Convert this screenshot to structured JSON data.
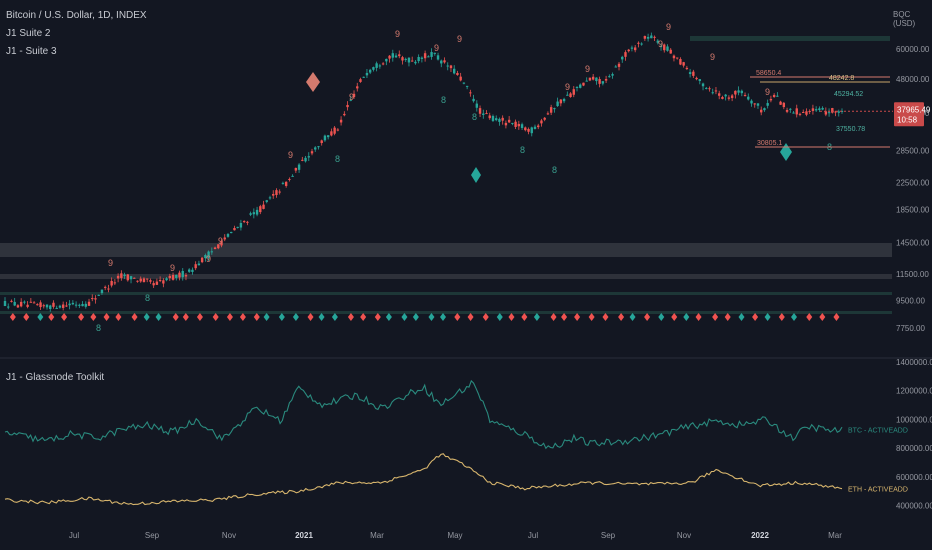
{
  "header": {
    "symbol_title": "Bitcoin / U.S. Dollar, 1D, INDEX",
    "indicator_1": "J1 Suite 2",
    "indicator_2": "J1 - Suite 3",
    "currency_label": "BQC (USD)"
  },
  "lower_pane": {
    "title": "J1 - Glassnode Toolkit"
  },
  "colors": {
    "background": "#131722",
    "candle_up": "#26a69a",
    "candle_down": "#ef5350",
    "btc_line": "#2a8a7e",
    "eth_line": "#d7b56d",
    "price_tag": "#c94a4a",
    "zone": "#3a3d45"
  },
  "chart_data": [
    {
      "type": "line",
      "title": "Bitcoin / U.S. Dollar, 1D, INDEX",
      "y_scale": "log",
      "ylim": [
        7000,
        73000
      ],
      "y_ticks": [
        "60000.00",
        "48000.00",
        "37500.00",
        "28500.00",
        "22500.00",
        "18500.00",
        "14500.00",
        "11500.00",
        "9500.00",
        "7750.00"
      ],
      "x_ticks": [
        "Jul",
        "Sep",
        "Nov",
        "2021",
        "Mar",
        "May",
        "Jul",
        "Sep",
        "Nov",
        "2022",
        "Mar"
      ],
      "series": [
        {
          "name": "",
          "x": [
            0,
            0.05,
            0.1,
            0.14,
            0.18,
            0.22,
            0.245,
            0.27,
            0.31,
            0.34,
            0.37,
            0.4,
            0.43,
            0.46,
            0.49,
            0.51,
            0.54,
            0.57,
            0.6,
            0.63,
            0.66,
            0.69,
            0.7,
            0.72,
            0.74,
            0.77,
            0.8,
            0.83,
            0.86,
            0.88,
            0.905,
            0.92,
            0.935
          ],
          "values": [
            9300,
            9100,
            9300,
            11400,
            10700,
            11700,
            13400,
            15500,
            19000,
            23000,
            29000,
            34000,
            50000,
            57000,
            55000,
            58000,
            50000,
            37000,
            35000,
            33000,
            40000,
            46000,
            48000,
            47000,
            57000,
            66000,
            57000,
            47000,
            42000,
            44000,
            38000,
            43000,
            37950
          ]
        }
      ],
      "price_labels": [
        "37965.49",
        "10:58",
        "58650.4",
        "48242.8",
        "45294.52",
        "30805.1",
        "37550.78"
      ]
    },
    {
      "type": "line",
      "title": "J1 - Glassnode Toolkit",
      "ylim": [
        300000,
        1400000
      ],
      "y_ticks": [
        "1400000.00",
        "1200000.00",
        "1000000.00",
        "800000.00",
        "600000.00",
        "400000.00"
      ],
      "series": [
        {
          "name": "BTC - ACTIVEADD",
          "x": [
            0,
            0.05,
            0.08,
            0.11,
            0.14,
            0.17,
            0.2,
            0.23,
            0.26,
            0.3,
            0.33,
            0.35,
            0.38,
            0.42,
            0.45,
            0.5,
            0.52,
            0.54,
            0.56,
            0.58,
            0.6,
            0.62,
            0.65,
            0.68,
            0.7,
            0.74,
            0.78,
            0.81,
            0.85,
            0.88,
            0.91,
            0.94,
            0.96,
            0.99,
            1.0
          ],
          "values": [
            910000,
            850000,
            900000,
            870000,
            930000,
            960000,
            910000,
            1000000,
            860000,
            1080000,
            990000,
            1220000,
            1100000,
            1170000,
            1080000,
            1230000,
            1100000,
            1180000,
            1260000,
            990000,
            940000,
            900000,
            800000,
            870000,
            830000,
            850000,
            890000,
            940000,
            990000,
            960000,
            1000000,
            870000,
            950000,
            920000,
            930000
          ]
        },
        {
          "name": "ETH - ACTIVEADD",
          "x": [
            0,
            0.05,
            0.1,
            0.15,
            0.2,
            0.25,
            0.3,
            0.35,
            0.4,
            0.45,
            0.5,
            0.52,
            0.55,
            0.58,
            0.62,
            0.66,
            0.7,
            0.74,
            0.78,
            0.82,
            0.85,
            0.9,
            0.95,
            1.0
          ],
          "values": [
            440000,
            420000,
            450000,
            410000,
            430000,
            440000,
            480000,
            500000,
            560000,
            560000,
            650000,
            760000,
            680000,
            560000,
            520000,
            540000,
            560000,
            550000,
            550000,
            560000,
            650000,
            540000,
            560000,
            520000
          ]
        }
      ]
    }
  ]
}
